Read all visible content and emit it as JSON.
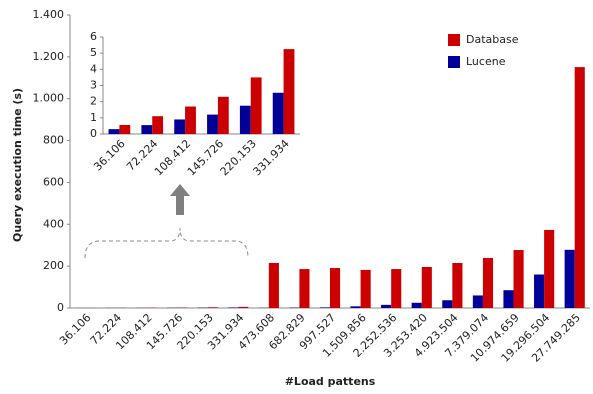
{
  "chart_data": [
    {
      "type": "bar",
      "y_label": "Query execution time (s)",
      "x_label": "#Load pattens",
      "categories": [
        "36.106",
        "72.224",
        "108.412",
        "145.726",
        "220.153",
        "331.934",
        "473.608",
        "682.829",
        "997.527",
        "1.509.856",
        "2.252.536",
        "3.253.420",
        "4.923.504",
        "7.379.074",
        "10.974.659",
        "19.296.504",
        "27.749.285"
      ],
      "series": [
        {
          "name": "Lucene",
          "color": "#000099",
          "values": [
            0.3,
            0.55,
            0.9,
            1.2,
            1.75,
            2.55,
            1,
            2,
            3,
            8,
            15,
            25,
            37,
            60,
            85,
            160,
            278
          ]
        },
        {
          "name": "Database",
          "color": "#cc0000",
          "values": [
            0.56,
            1.1,
            1.7,
            2.3,
            3.5,
            5.25,
            215,
            186,
            191,
            182,
            186,
            196,
            215,
            239,
            277,
            373,
            1151
          ]
        }
      ],
      "ylim": [
        0,
        1400
      ],
      "yticks": [
        0,
        200,
        400,
        600,
        800,
        {
          "value": 1000,
          "label": "1.000"
        },
        {
          "value": 1200,
          "label": "1.200"
        },
        {
          "value": 1400,
          "label": "1.400"
        }
      ],
      "legend": "top-right"
    },
    {
      "type": "bar",
      "categories": [
        "36.106",
        "72.224",
        "108.412",
        "145.726",
        "220.153",
        "331.934"
      ],
      "series": [
        {
          "color": "#000099",
          "values": [
            0.3,
            0.55,
            0.9,
            1.2,
            1.75,
            2.55
          ]
        },
        {
          "color": "#cc0000",
          "values": [
            0.56,
            1.1,
            1.7,
            2.3,
            3.5,
            5.25
          ]
        }
      ],
      "ylim": [
        0,
        6
      ],
      "yticks": [
        0,
        1,
        2,
        3,
        4,
        5,
        6
      ]
    }
  ]
}
